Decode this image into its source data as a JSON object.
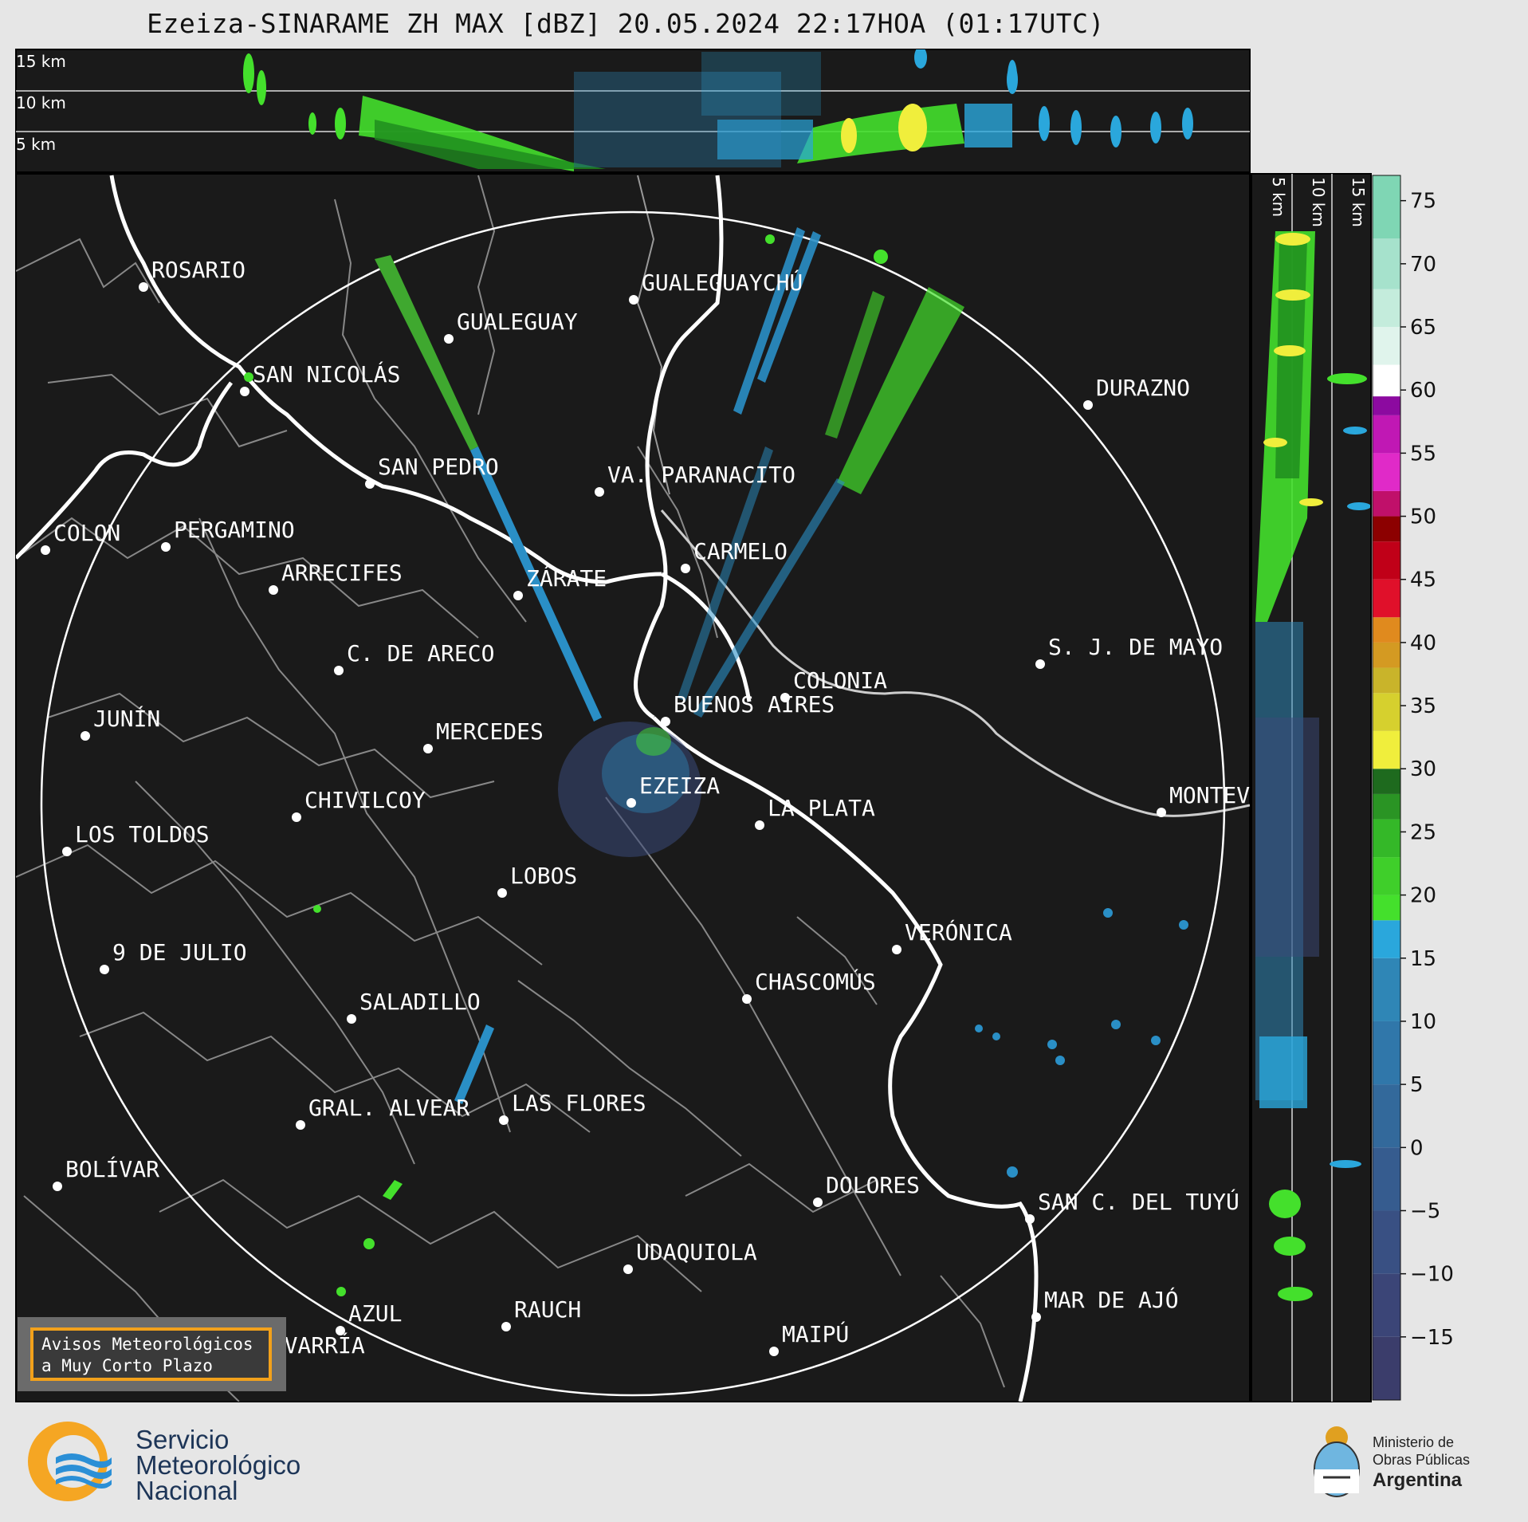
{
  "title": "Ezeiza-SINARAME ZH MAX [dBZ] 20.05.2024 22:17HOA (01:17UTC)",
  "top_profile": {
    "height_labels": [
      "15 km",
      "10 km",
      "5 km"
    ]
  },
  "side_profile": {
    "height_labels": [
      "5 km",
      "10 km",
      "15 km"
    ]
  },
  "colorbar": {
    "unit": "dBZ",
    "tick_labels": [
      "75",
      "70",
      "65",
      "60",
      "55",
      "50",
      "45",
      "40",
      "35",
      "30",
      "25",
      "20",
      "15",
      "10",
      "5",
      "0",
      "−5",
      "−10",
      "−15"
    ],
    "range": [
      -20,
      77
    ],
    "colors": {
      "lowest": "#3b3d6b",
      "blue_mid": "#2f86b6",
      "cyan": "#2aa7dc",
      "green_light": "#44e02c",
      "green_dark": "#1e6a1e",
      "yellow": "#f0ee3c",
      "olive": "#c9b42a",
      "orange": "#e08a1e",
      "red": "#e0102a",
      "dark_red": "#8c0000",
      "magenta": "#e02ac8",
      "purple": "#8c0aa0",
      "white": "#ffffff",
      "mint": "#7fd6b4"
    }
  },
  "map": {
    "background": "#1a1a1a",
    "radar_site": "EZEIZA",
    "range_ring_color": "#ffffff",
    "cities": [
      {
        "name": "ROSARIO"
      },
      {
        "name": "GUALEGUAYCHÚ"
      },
      {
        "name": "GUALEGUAY"
      },
      {
        "name": "SAN NICOLÁS"
      },
      {
        "name": "DURAZNO"
      },
      {
        "name": "SAN PEDRO"
      },
      {
        "name": "VA. PARANACITO"
      },
      {
        "name": "COLON"
      },
      {
        "name": "PERGAMINO"
      },
      {
        "name": "ARRECIFES"
      },
      {
        "name": "ZÁRATE"
      },
      {
        "name": "CARMELO"
      },
      {
        "name": "S. J. DE MAYO"
      },
      {
        "name": "C. DE ARECO"
      },
      {
        "name": "COLONIA"
      },
      {
        "name": "JUNÍN"
      },
      {
        "name": "BUENOS AIRES"
      },
      {
        "name": "MERCEDES"
      },
      {
        "name": "EZEIZA"
      },
      {
        "name": "MONTEVIDEO"
      },
      {
        "name": "CHIVILCOY"
      },
      {
        "name": "LA PLATA"
      },
      {
        "name": "LOS TOLDOS"
      },
      {
        "name": "LOBOS"
      },
      {
        "name": "VERÓNICA"
      },
      {
        "name": "9 DE JULIO"
      },
      {
        "name": "CHASCOMÚS"
      },
      {
        "name": "SALADILLO"
      },
      {
        "name": "GRAL. ALVEAR"
      },
      {
        "name": "LAS FLORES"
      },
      {
        "name": "BOLÍVAR"
      },
      {
        "name": "DOLORES"
      },
      {
        "name": "SAN C. DEL TUYÚ"
      },
      {
        "name": "UDAQUIOLA"
      },
      {
        "name": "MAR DE AJÓ"
      },
      {
        "name": "RAUCH"
      },
      {
        "name": "AZUL"
      },
      {
        "name": "OLAVARRÍA"
      },
      {
        "name": "MAIPÚ"
      }
    ]
  },
  "avisos": {
    "line1": "Avisos Meteorológicos",
    "line2": "a Muy Corto Plazo"
  },
  "footer": {
    "smn": {
      "line1": "Servicio",
      "line2": "Meteorológico",
      "line3": "Nacional"
    },
    "ministry": {
      "line1": "Ministerio de",
      "line2": "Obras Públicas",
      "line3": "Argentina"
    }
  }
}
